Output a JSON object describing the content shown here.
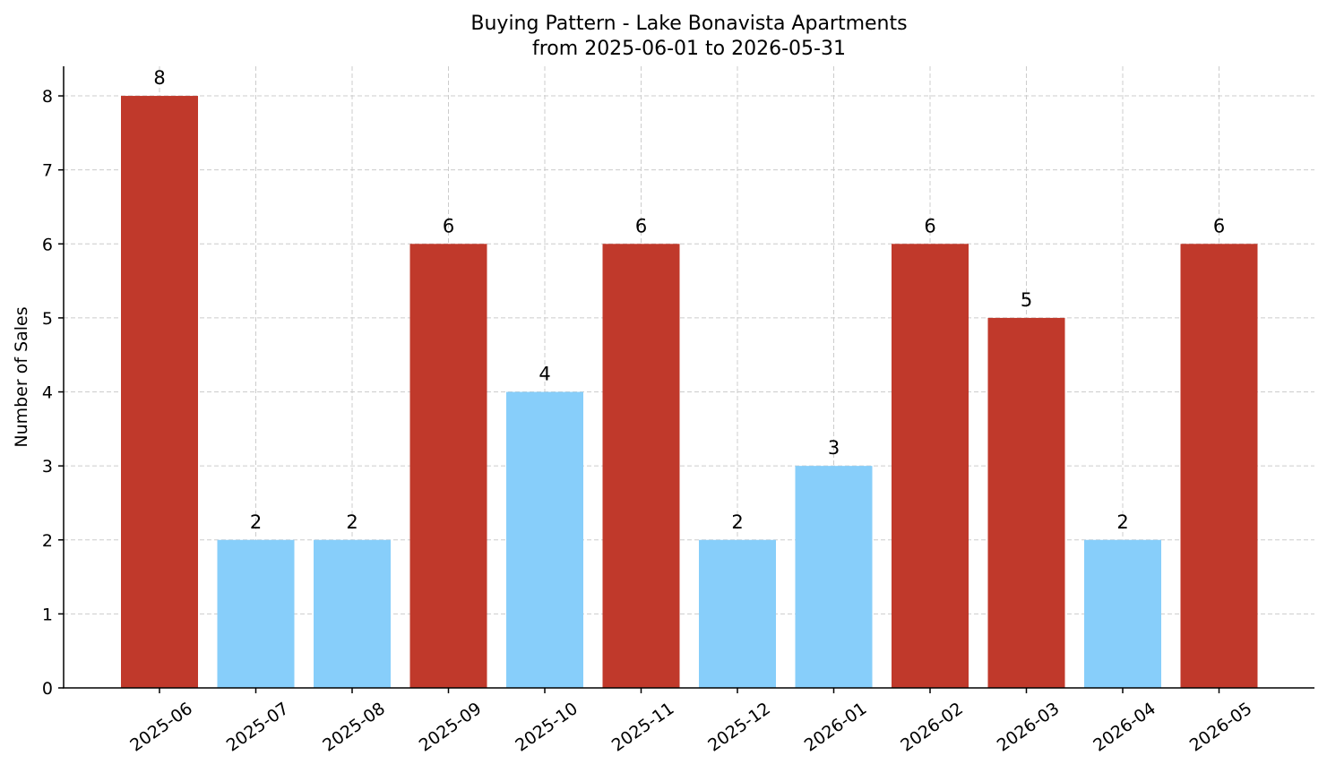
{
  "chart_data": {
    "type": "bar",
    "title": "Buying Pattern - Lake Bonavista Apartments",
    "subtitle": "from 2025-06-01 to 2026-05-31",
    "xlabel": "",
    "ylabel": "Number of Sales",
    "categories": [
      "2025-06",
      "2025-07",
      "2025-08",
      "2025-09",
      "2025-10",
      "2025-11",
      "2025-12",
      "2026-01",
      "2026-02",
      "2026-03",
      "2026-04",
      "2026-05"
    ],
    "values": [
      8,
      2,
      2,
      6,
      4,
      6,
      2,
      3,
      6,
      5,
      2,
      6
    ],
    "bar_colors": [
      "#c0392b",
      "#87cefa",
      "#87cefa",
      "#c0392b",
      "#87cefa",
      "#c0392b",
      "#87cefa",
      "#87cefa",
      "#c0392b",
      "#c0392b",
      "#87cefa",
      "#c0392b"
    ],
    "ylim": [
      0,
      8.4
    ],
    "yticks": [
      0,
      1,
      2,
      3,
      4,
      5,
      6,
      7,
      8
    ],
    "grid": true,
    "legend": "none"
  }
}
